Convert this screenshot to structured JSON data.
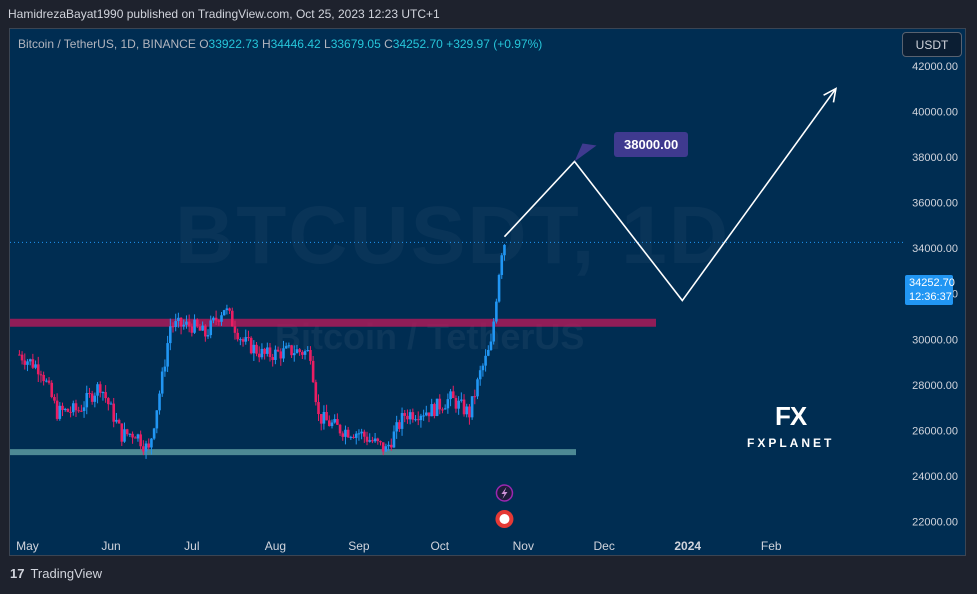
{
  "publisher_line": "HamidrezaBayat1990 published on TradingView.com, Oct 25, 2023 12:23 UTC+1",
  "legend": {
    "symbol": "Bitcoin / TetherUS, 1D, BINANCE",
    "open_label": "O",
    "open": "33922.73",
    "high_label": "H",
    "high": "34446.42",
    "low_label": "L",
    "low": "33679.05",
    "close_label": "C",
    "close": "34252.70",
    "change": "+329.97 (+0.97%)"
  },
  "currency_button": "USDT",
  "watermark": {
    "symbol": "BTCUSDT, 1D",
    "description": "Bitcoin / TetherUS"
  },
  "price_tag": {
    "price": "34252.70",
    "countdown": "12:36:37"
  },
  "callout_label": "38000.00",
  "brand": {
    "mark": "FX",
    "name": "FXPLANET"
  },
  "footer": {
    "logo": "17",
    "name": "TradingView"
  },
  "colors": {
    "background": "#002d52",
    "bull": "#2196f3",
    "bear": "#e91e63",
    "resistance_zone": "#c2185b",
    "support_zone": "#5b9aa0",
    "projection": "#ffffff",
    "callout": "#3f3a8f"
  },
  "chart_data": {
    "type": "candlestick",
    "x_axis_labels": [
      "May",
      "Jun",
      "Jul",
      "Aug",
      "Sep",
      "Oct",
      "Nov",
      "Dec",
      "2024",
      "Feb"
    ],
    "y_axis_labels": [
      "42000.00",
      "40000.00",
      "38000.00",
      "36000.00",
      "34000.00",
      "32000.00",
      "30000.00",
      "28000.00",
      "26000.00",
      "24000.00",
      "22000.00"
    ],
    "ylim": [
      21500,
      43000
    ],
    "candles_closes": [
      [
        "2023-04-28",
        29330
      ],
      [
        "2023-05-06",
        28700
      ],
      [
        "2023-05-12",
        26800
      ],
      [
        "2023-05-20",
        26900
      ],
      [
        "2023-05-28",
        28000
      ],
      [
        "2023-06-05",
        25800
      ],
      [
        "2023-06-10",
        25900
      ],
      [
        "2023-06-15",
        25100
      ],
      [
        "2023-06-20",
        28300
      ],
      [
        "2023-06-23",
        30600
      ],
      [
        "2023-07-01",
        30600
      ],
      [
        "2023-07-06",
        30200
      ],
      [
        "2023-07-13",
        31400
      ],
      [
        "2023-07-20",
        29900
      ],
      [
        "2023-07-28",
        29300
      ],
      [
        "2023-08-08",
        29500
      ],
      [
        "2023-08-14",
        29400
      ],
      [
        "2023-08-17",
        26600
      ],
      [
        "2023-08-25",
        26050
      ],
      [
        "2023-09-01",
        25900
      ],
      [
        "2023-09-11",
        25150
      ],
      [
        "2023-09-18",
        26700
      ],
      [
        "2023-09-28",
        26900
      ],
      [
        "2023-10-05",
        27400
      ],
      [
        "2023-10-12",
        26750
      ],
      [
        "2023-10-16",
        28500
      ],
      [
        "2023-10-20",
        29700
      ],
      [
        "2023-10-23",
        33000
      ],
      [
        "2023-10-24",
        33920
      ],
      [
        "2023-10-25",
        34252.7
      ]
    ],
    "zones": [
      {
        "name": "resistance",
        "from": 30550,
        "to": 30900
      },
      {
        "name": "support",
        "from": 25000,
        "to": 25180
      }
    ],
    "projection_path": [
      [
        "2023-10-25",
        34500
      ],
      [
        "2023-11-20",
        37800
      ],
      [
        "2023-12-30",
        31700
      ],
      [
        "2024-02-25",
        41000
      ]
    ],
    "last_price": 34252.7
  }
}
